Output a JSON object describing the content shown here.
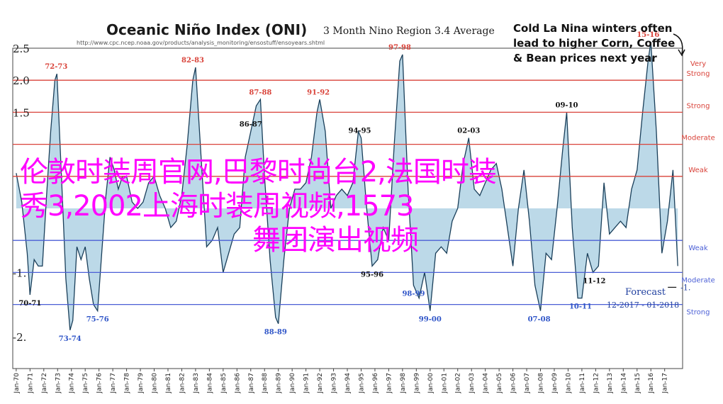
{
  "header": {
    "title": "Oceanic Niño Index (ONI)",
    "subtitle": "3 Month Nino Region 3.4 Average",
    "source_url": "http://www.cpc.ncep.noaa.gov/products/analysis_monitoring/ensostuff/ensoyears.shtml"
  },
  "callout": {
    "text": "Cold La Nina winters often lead to higher Corn, Coffee & Bean prices next year"
  },
  "overlay": {
    "line1": "伦敦时装周官网,巴黎时尚台2,法国时装",
    "line2": "秀3,2002上海时装周视频,1573",
    "line3": "舞团演出视频",
    "color": "#ff00ff"
  },
  "forecast": {
    "label": "Forecast",
    "range": "12-2017 - 01-2018",
    "value_label": "-1."
  },
  "chart_data": {
    "type": "area",
    "ylim": [
      -2.5,
      2.5
    ],
    "y_ticks": [
      2.5,
      2.0,
      1.5,
      1.0,
      0.5,
      0.0,
      -0.5,
      -1.0,
      -1.5,
      -2.0,
      -2.5
    ],
    "y_tick_labels": [
      "2.5",
      "2.0",
      "1.5",
      "",
      "",
      "",
      "",
      "-1.",
      "",
      "-2.",
      ""
    ],
    "x_ticks": [
      "Jan-70",
      "Jan-71",
      "Jan-72",
      "Jan-73",
      "Jan-74",
      "Jan-75",
      "Jan-76",
      "Jan-77",
      "Jan-78",
      "Jan-79",
      "Jan-80",
      "Jan-81",
      "Jan-82",
      "Jan-83",
      "Jan-84",
      "Jan-85",
      "Jan-86",
      "Jan-87",
      "Jan-88",
      "Jan-89",
      "Jan-90",
      "Jan-91",
      "Jan-92",
      "Jan-93",
      "Jan-94",
      "Jan-95",
      "Jan-96",
      "Jan-97",
      "Jan-98",
      "Jan-99",
      "Jan-00",
      "Jan-01",
      "Jan-02",
      "Jan-03",
      "Jan-04",
      "Jan-05",
      "Jan-06",
      "Jan-07",
      "Jan-08",
      "Jan-09",
      "Jan-10",
      "Jan-11",
      "Jan-12",
      "Jan-13",
      "Jan-14",
      "Jan-15",
      "Jan-16",
      "Jan-17"
    ],
    "threshold_lines": [
      {
        "value": 2.0,
        "label": "Very Strong",
        "color": "#d9433a"
      },
      {
        "value": 1.5,
        "label": "Strong",
        "color": "#d9433a"
      },
      {
        "value": 1.0,
        "label": "Moderate",
        "color": "#d9433a"
      },
      {
        "value": 0.5,
        "label": "Weak",
        "color": "#d9433a"
      },
      {
        "value": -0.5,
        "label": "Weak",
        "color": "#4b5fd6"
      },
      {
        "value": -1.0,
        "label": "Moderate",
        "color": "#4b5fd6"
      },
      {
        "value": -1.5,
        "label": "Strong",
        "color": "#4b5fd6"
      }
    ],
    "series": [
      {
        "fill": "#bcd9e8",
        "stroke": "#1a3f5a",
        "x": [
          1970.0,
          1970.4,
          1970.8,
          1971.0,
          1971.3,
          1971.6,
          1971.9,
          1972.2,
          1972.5,
          1972.8,
          1972.95,
          1973.3,
          1973.6,
          1973.9,
          1974.1,
          1974.4,
          1974.7,
          1975.0,
          1975.3,
          1975.6,
          1975.9,
          1976.2,
          1976.5,
          1976.8,
          1977.1,
          1977.4,
          1977.7,
          1978.0,
          1978.4,
          1978.8,
          1979.2,
          1979.6,
          1980.0,
          1980.4,
          1980.8,
          1981.2,
          1981.6,
          1982.0,
          1982.4,
          1982.8,
          1983.0,
          1983.4,
          1983.8,
          1984.2,
          1984.6,
          1985.0,
          1985.4,
          1985.8,
          1986.2,
          1986.6,
          1987.0,
          1987.4,
          1987.7,
          1988.0,
          1988.4,
          1988.8,
          1989.0,
          1989.4,
          1989.8,
          1990.2,
          1990.6,
          1991.0,
          1991.4,
          1991.8,
          1992.0,
          1992.4,
          1992.8,
          1993.2,
          1993.6,
          1994.0,
          1994.4,
          1994.8,
          1995.0,
          1995.4,
          1995.8,
          1996.2,
          1996.6,
          1997.0,
          1997.4,
          1997.8,
          1998.0,
          1998.4,
          1998.8,
          1999.2,
          1999.6,
          2000.0,
          2000.4,
          2000.8,
          2001.2,
          2001.6,
          2002.0,
          2002.4,
          2002.8,
          2003.2,
          2003.6,
          2004.0,
          2004.4,
          2004.8,
          2005.2,
          2005.6,
          2006.0,
          2006.4,
          2006.8,
          2007.2,
          2007.6,
          2008.0,
          2008.4,
          2008.8,
          2009.2,
          2009.6,
          2009.9,
          2010.3,
          2010.7,
          2011.0,
          2011.4,
          2011.8,
          2012.2,
          2012.6,
          2013.0,
          2013.4,
          2013.8,
          2014.2,
          2014.6,
          2015.0,
          2015.4,
          2015.8,
          2016.0,
          2016.4,
          2016.8,
          2017.2,
          2017.6,
          2017.95
        ],
        "y": [
          0.55,
          0.1,
          -0.7,
          -1.35,
          -0.8,
          -0.9,
          -0.9,
          0.2,
          1.2,
          2.0,
          2.1,
          0.4,
          -1.1,
          -1.9,
          -1.75,
          -0.6,
          -0.8,
          -0.6,
          -1.1,
          -1.5,
          -1.6,
          -0.7,
          0.2,
          0.8,
          0.6,
          0.3,
          0.5,
          0.5,
          0.1,
          0.0,
          0.1,
          0.4,
          0.5,
          0.2,
          0.0,
          -0.3,
          -0.2,
          0.2,
          1.0,
          2.0,
          2.2,
          0.8,
          -0.6,
          -0.5,
          -0.3,
          -1.0,
          -0.7,
          -0.4,
          -0.3,
          0.8,
          1.2,
          1.6,
          1.7,
          0.5,
          -0.8,
          -1.7,
          -1.8,
          -0.8,
          0.0,
          0.3,
          0.3,
          0.4,
          0.8,
          1.5,
          1.7,
          1.2,
          0.0,
          0.2,
          0.3,
          0.2,
          0.4,
          1.2,
          1.1,
          0.0,
          -0.9,
          -0.8,
          -0.3,
          -0.5,
          1.0,
          2.3,
          2.4,
          0.3,
          -1.2,
          -1.4,
          -1.0,
          -1.6,
          -0.7,
          -0.6,
          -0.7,
          -0.2,
          0.0,
          0.7,
          1.1,
          0.3,
          0.2,
          0.4,
          0.6,
          0.7,
          0.3,
          -0.3,
          -0.9,
          0.0,
          0.6,
          -0.2,
          -1.2,
          -1.6,
          -0.7,
          -0.8,
          0.0,
          0.9,
          1.5,
          -0.3,
          -1.4,
          -1.4,
          -0.7,
          -1.0,
          -0.9,
          0.4,
          -0.4,
          -0.3,
          -0.2,
          -0.3,
          0.3,
          0.6,
          1.5,
          2.3,
          2.6,
          1.2,
          -0.7,
          -0.2,
          0.6,
          -0.9
        ]
      }
    ],
    "annotations": [
      {
        "text": "72-73",
        "x": 1972.9,
        "y": 2.1,
        "color": "#d9433a"
      },
      {
        "text": "82-83",
        "x": 1982.8,
        "y": 2.2,
        "color": "#d9433a"
      },
      {
        "text": "97-98",
        "x": 1997.8,
        "y": 2.4,
        "color": "#d9433a"
      },
      {
        "text": "15-16",
        "x": 2015.8,
        "y": 2.6,
        "color": "#d9433a"
      },
      {
        "text": "87-88",
        "x": 1987.7,
        "y": 1.7,
        "color": "#d9433a"
      },
      {
        "text": "91-92",
        "x": 1991.9,
        "y": 1.7,
        "color": "#d9433a"
      },
      {
        "text": "09-10",
        "x": 2009.9,
        "y": 1.5,
        "color": "#111111"
      },
      {
        "text": "86-87",
        "x": 1987.0,
        "y": 1.2,
        "color": "#111111"
      },
      {
        "text": "94-95",
        "x": 1994.9,
        "y": 1.1,
        "color": "#111111"
      },
      {
        "text": "02-03",
        "x": 2002.8,
        "y": 1.1,
        "color": "#111111"
      },
      {
        "text": "70-71",
        "x": 1971.0,
        "y": -1.35,
        "color": "#111111"
      },
      {
        "text": "73-74",
        "x": 1973.9,
        "y": -1.9,
        "color": "#2f55c8"
      },
      {
        "text": "75-76",
        "x": 1975.9,
        "y": -1.6,
        "color": "#2f55c8"
      },
      {
        "text": "88-89",
        "x": 1988.8,
        "y": -1.8,
        "color": "#2f55c8"
      },
      {
        "text": "95-96",
        "x": 1995.8,
        "y": -0.9,
        "color": "#111111"
      },
      {
        "text": "98-99",
        "x": 1998.8,
        "y": -1.2,
        "color": "#2f55c8"
      },
      {
        "text": "99-00",
        "x": 2000.0,
        "y": -1.6,
        "color": "#2f55c8"
      },
      {
        "text": "07-08",
        "x": 2007.9,
        "y": -1.6,
        "color": "#2f55c8"
      },
      {
        "text": "10-11",
        "x": 2010.9,
        "y": -1.4,
        "color": "#2f55c8"
      },
      {
        "text": "11-12",
        "x": 2011.9,
        "y": -1.0,
        "color": "#111111"
      }
    ],
    "grid": false,
    "legend": "none"
  }
}
